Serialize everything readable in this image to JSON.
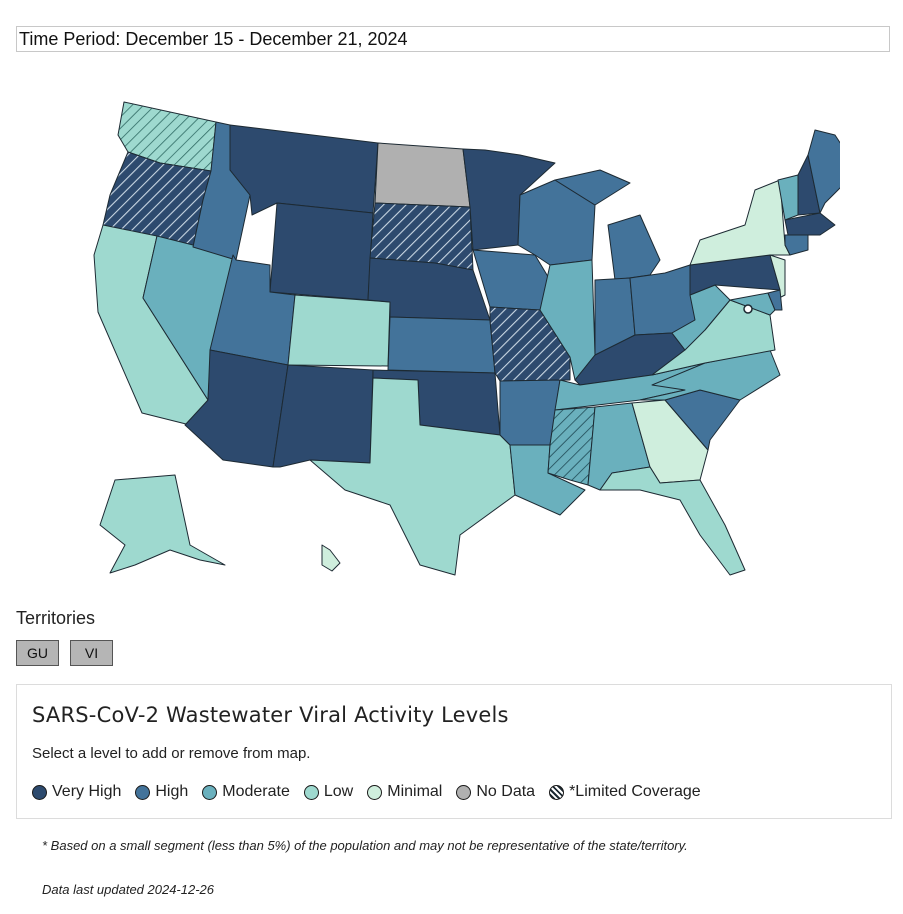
{
  "time_period": "Time Period: December 15 - December 21, 2024",
  "territories": {
    "title": "Territories",
    "buttons": [
      "GU",
      "VI"
    ]
  },
  "legend": {
    "title": "SARS-CoV-2 Wastewater Viral Activity Levels",
    "subtitle": "Select a level to add or remove from map.",
    "items": [
      {
        "label": "Very High",
        "color": "#2d4a6e"
      },
      {
        "label": "High",
        "color": "#43739a"
      },
      {
        "label": "Moderate",
        "color": "#6ab0bd"
      },
      {
        "label": "Low",
        "color": "#9ed9cf"
      },
      {
        "label": "Minimal",
        "color": "#cfeedd"
      },
      {
        "label": "No Data",
        "color": "#b0b0b0"
      },
      {
        "label": "*Limited Coverage",
        "color": "hatched"
      }
    ]
  },
  "footnote": "* Based on a small segment (less than 5%) of the population and may not be representative of the state/territory.",
  "updated": "Data last updated 2024-12-26",
  "map_levels": {
    "WA": "Low",
    "OR": "Very High",
    "CA": "Low",
    "NV": "Moderate",
    "ID": "High",
    "MT": "Very High",
    "WY": "Very High",
    "UT": "High",
    "AZ": "Very High",
    "CO": "Low",
    "NM": "Very High",
    "ND": "No Data",
    "SD": "Very High",
    "NE": "Very High",
    "KS": "High",
    "OK": "Very High",
    "TX": "Low",
    "MN": "Very High",
    "IA": "High",
    "MO": "Very High",
    "AR": "High",
    "LA": "Moderate",
    "WI": "High",
    "IL": "Moderate",
    "MI": "High",
    "IN": "High",
    "OH": "High",
    "KY": "Very High",
    "TN": "Moderate",
    "MS": "Moderate",
    "AL": "Moderate",
    "GA": "Minimal",
    "FL": "Low",
    "SC": "High",
    "NC": "Moderate",
    "VA": "Low",
    "WV": "Moderate",
    "PA": "Very High",
    "NY": "Minimal",
    "VT": "Moderate",
    "NH": "Very High",
    "ME": "High",
    "MA": "Very High",
    "CT": "High",
    "NJ": "Minimal",
    "MD": "Moderate",
    "DE": "High",
    "AK": "Low",
    "HI": "Minimal"
  },
  "limited_coverage": [
    "WA",
    "OR",
    "SD",
    "MO",
    "MS"
  ]
}
